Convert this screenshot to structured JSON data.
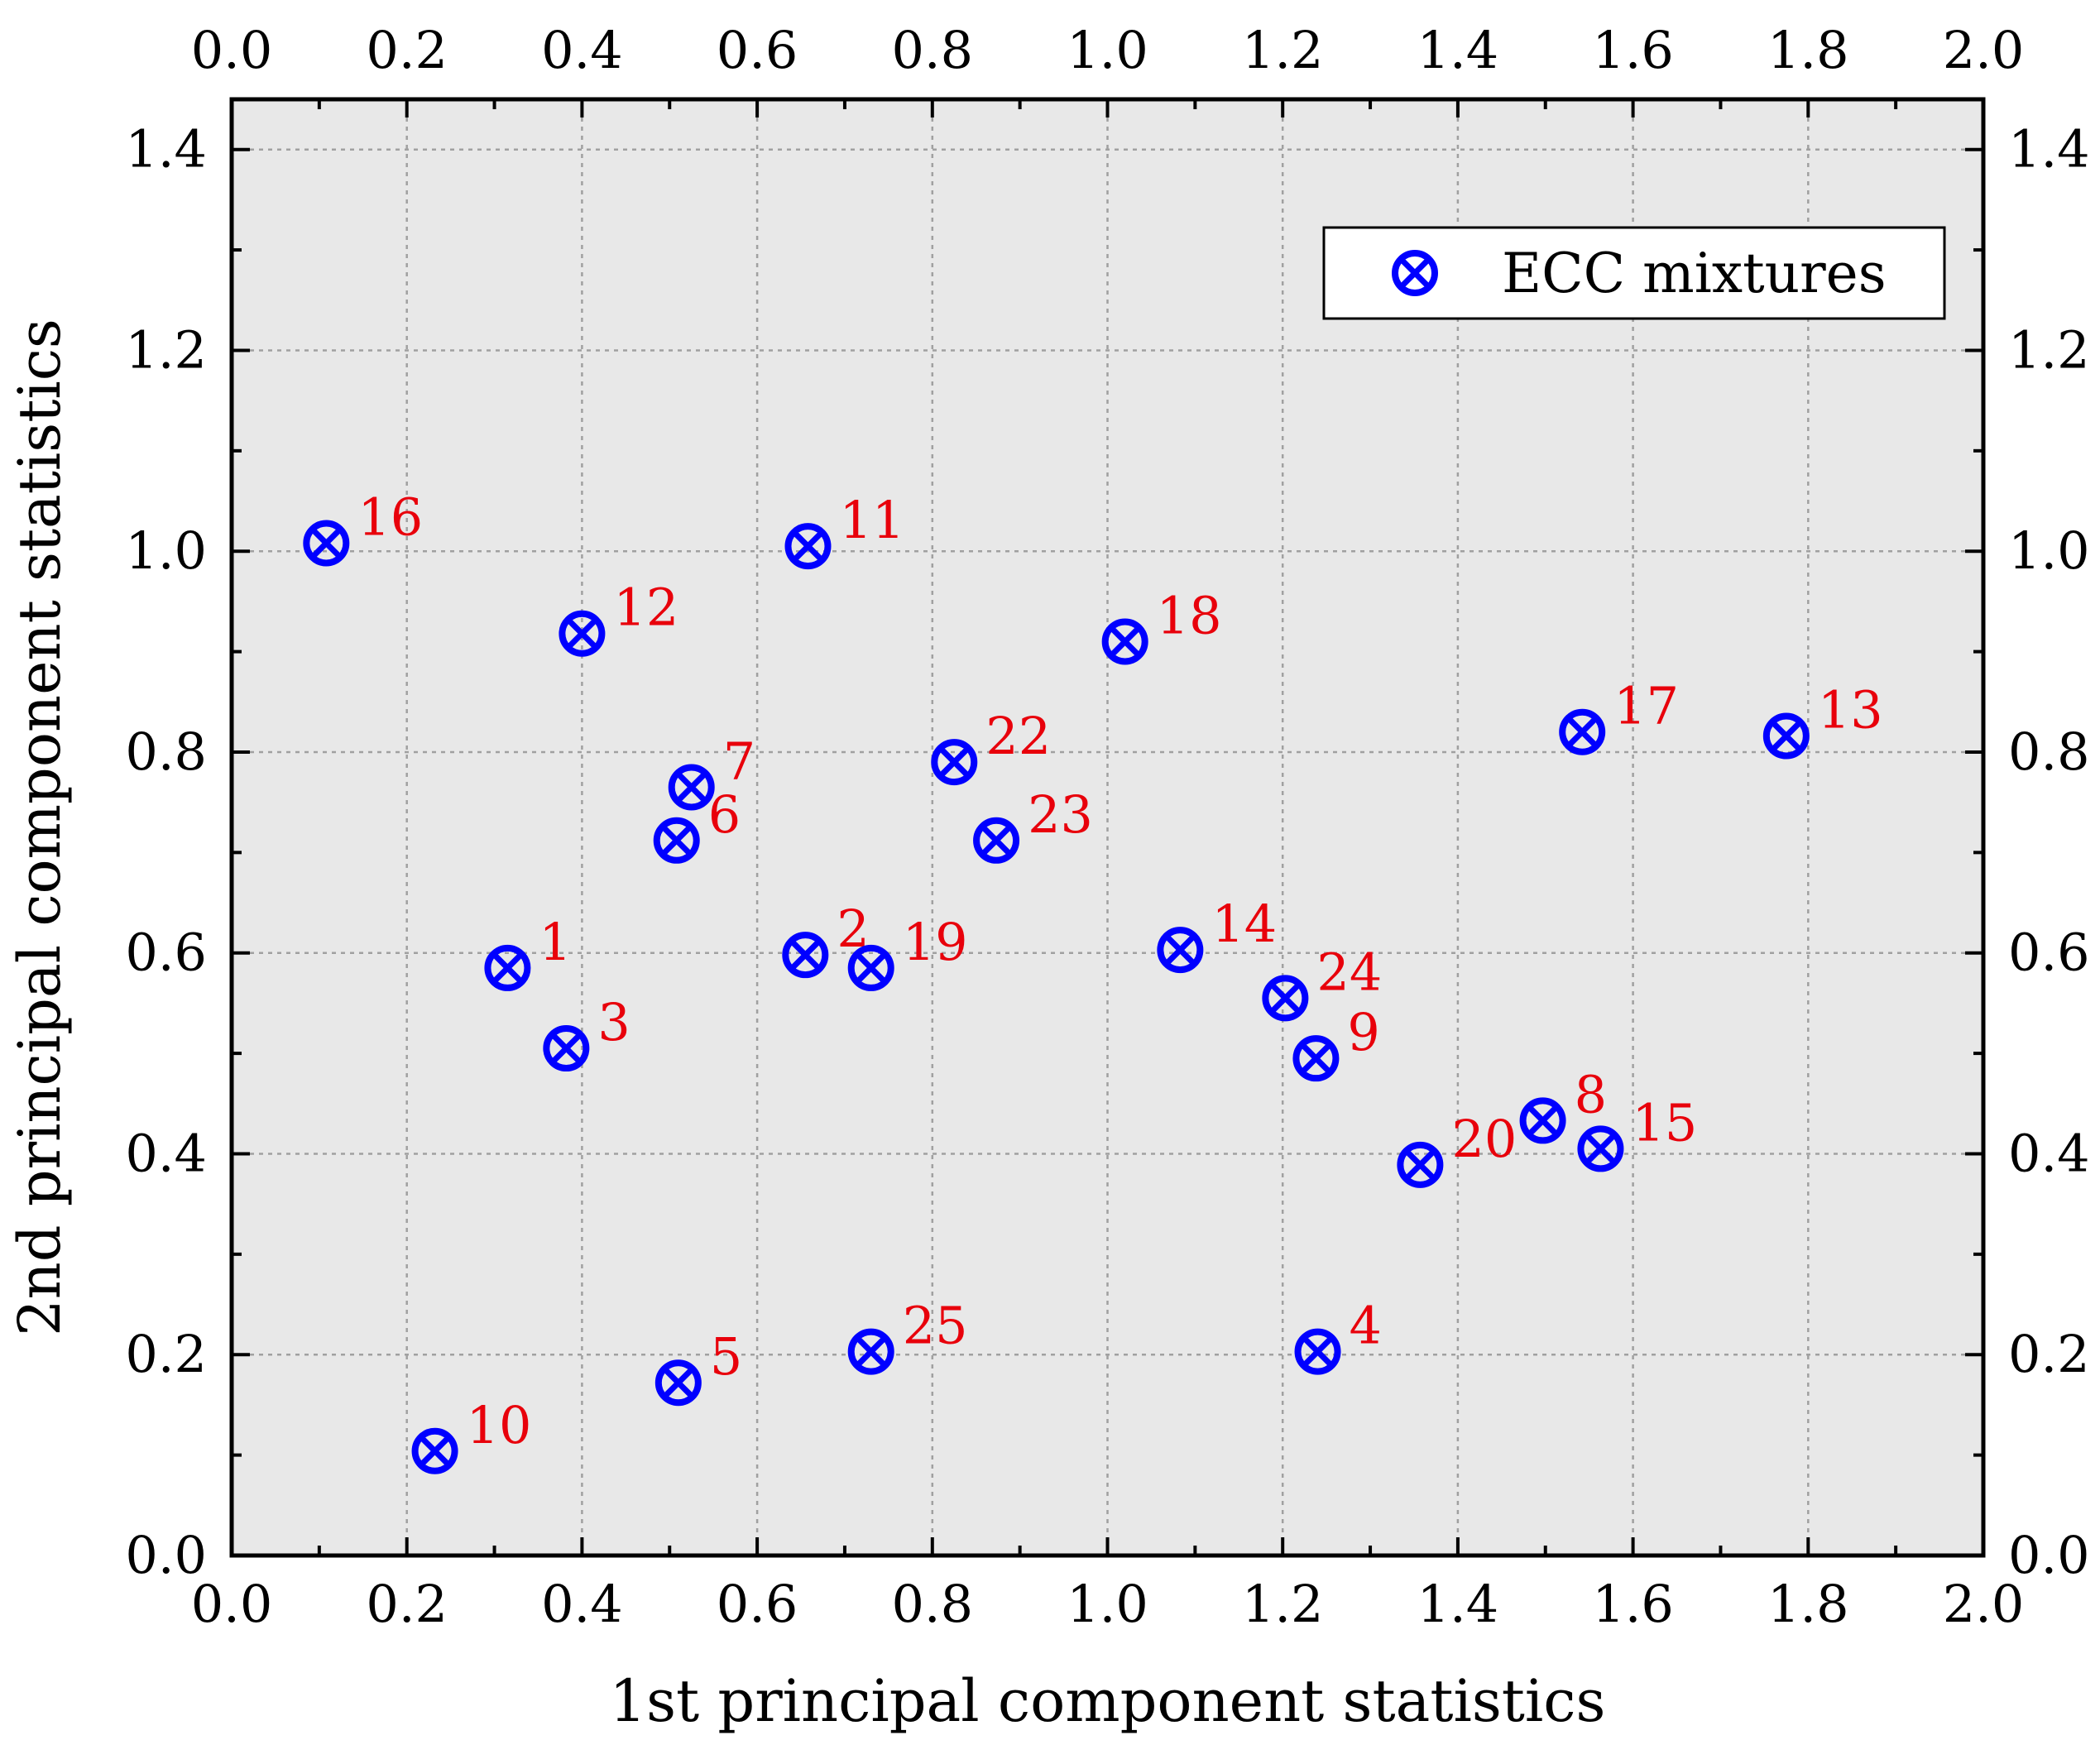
{
  "chart_data": {
    "type": "scatter",
    "title": "",
    "xlabel": "1st principal component statistics",
    "ylabel": "2nd principal component statistics",
    "xlim": [
      0.0,
      2.0
    ],
    "ylim": [
      0.0,
      1.45
    ],
    "x_ticks": [
      "0.0",
      "0.2",
      "0.4",
      "0.6",
      "0.8",
      "1.0",
      "1.2",
      "1.4",
      "1.6",
      "1.8",
      "2.0"
    ],
    "y_ticks": [
      "0.0",
      "0.2",
      "0.4",
      "0.6",
      "0.8",
      "1.0",
      "1.2",
      "1.4"
    ],
    "grid": true,
    "legend_position": "top-right",
    "colors": {
      "marker": "#0000ff",
      "label": "#e8000b",
      "plot_background": "#e8e8e8"
    },
    "series": [
      {
        "name": "ECC mixtures",
        "marker": "circle-x",
        "points": [
          {
            "label": "1",
            "x": 0.315,
            "y": 0.585
          },
          {
            "label": "2",
            "x": 0.655,
            "y": 0.598
          },
          {
            "label": "3",
            "x": 0.382,
            "y": 0.505
          },
          {
            "label": "4",
            "x": 1.24,
            "y": 0.203
          },
          {
            "label": "5",
            "x": 0.51,
            "y": 0.172
          },
          {
            "label": "6",
            "x": 0.508,
            "y": 0.712
          },
          {
            "label": "7",
            "x": 0.525,
            "y": 0.765
          },
          {
            "label": "8",
            "x": 1.497,
            "y": 0.433
          },
          {
            "label": "9",
            "x": 1.238,
            "y": 0.495
          },
          {
            "label": "10",
            "x": 0.232,
            "y": 0.104
          },
          {
            "label": "11",
            "x": 0.658,
            "y": 1.005
          },
          {
            "label": "12",
            "x": 0.4,
            "y": 0.918
          },
          {
            "label": "13",
            "x": 1.775,
            "y": 0.816
          },
          {
            "label": "14",
            "x": 1.083,
            "y": 0.603
          },
          {
            "label": "15",
            "x": 1.563,
            "y": 0.405
          },
          {
            "label": "16",
            "x": 0.108,
            "y": 1.008
          },
          {
            "label": "17",
            "x": 1.542,
            "y": 0.82
          },
          {
            "label": "18",
            "x": 1.02,
            "y": 0.91
          },
          {
            "label": "19",
            "x": 0.73,
            "y": 0.585
          },
          {
            "label": "20",
            "x": 1.357,
            "y": 0.389
          },
          {
            "label": "22",
            "x": 0.825,
            "y": 0.79
          },
          {
            "label": "23",
            "x": 0.873,
            "y": 0.712
          },
          {
            "label": "24",
            "x": 1.203,
            "y": 0.555
          },
          {
            "label": "25",
            "x": 0.73,
            "y": 0.203
          }
        ]
      }
    ]
  }
}
